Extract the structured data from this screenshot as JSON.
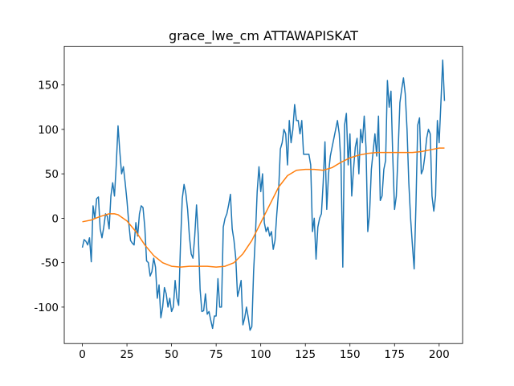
{
  "chart_data": {
    "type": "line",
    "title": "grace_lwe_cm ATTAWAPISKAT",
    "xlim": [
      -10.15,
      213.15
    ],
    "ylim": [
      -141,
      193.5
    ],
    "xticks": [
      0,
      25,
      50,
      75,
      100,
      125,
      150,
      175,
      200
    ],
    "yticks": [
      -100,
      -50,
      0,
      50,
      100,
      150
    ],
    "series": [
      {
        "color": "#1f77b4",
        "x": [
          0,
          1,
          2,
          3,
          4,
          5,
          6,
          7,
          8,
          9,
          10,
          11,
          12,
          13,
          14,
          15,
          16,
          17,
          18,
          19,
          20,
          21,
          22,
          23,
          24,
          25,
          26,
          27,
          28,
          29,
          30,
          31,
          32,
          33,
          34,
          35,
          36,
          37,
          38,
          39,
          40,
          41,
          42,
          43,
          44,
          45,
          46,
          47,
          48,
          49,
          50,
          51,
          52,
          53,
          54,
          55,
          56,
          57,
          58,
          59,
          60,
          61,
          62,
          63,
          64,
          65,
          66,
          67,
          68,
          69,
          70,
          71,
          72,
          73,
          74,
          75,
          76,
          77,
          78,
          79,
          80,
          81,
          82,
          83,
          84,
          85,
          86,
          87,
          88,
          89,
          90,
          91,
          92,
          93,
          94,
          95,
          96,
          97,
          98,
          99,
          100,
          101,
          102,
          103,
          104,
          105,
          106,
          107,
          108,
          109,
          110,
          111,
          112,
          113,
          114,
          115,
          116,
          117,
          118,
          119,
          120,
          121,
          122,
          123,
          124,
          125,
          126,
          127,
          128,
          129,
          130,
          131,
          132,
          133,
          134,
          135,
          136,
          137,
          138,
          139,
          140,
          141,
          142,
          143,
          144,
          145,
          146,
          147,
          148,
          149,
          150,
          151,
          152,
          153,
          154,
          155,
          156,
          157,
          158,
          159,
          160,
          161,
          162,
          163,
          164,
          165,
          166,
          167,
          168,
          169,
          170,
          171,
          172,
          173,
          174,
          175,
          176,
          177,
          178,
          179,
          180,
          181,
          182,
          183,
          184,
          185,
          186,
          187,
          188,
          189,
          190,
          191,
          192,
          193,
          194,
          195,
          196,
          197,
          198,
          199,
          200,
          201,
          202,
          203
        ],
        "values": [
          -33,
          -24,
          -26,
          -30,
          -22,
          -49,
          14,
          0,
          22,
          24,
          -12,
          -22,
          -10,
          5,
          2,
          -12,
          25,
          40,
          25,
          60,
          104,
          75,
          50,
          58,
          40,
          20,
          -5,
          -25,
          -28,
          -30,
          -5,
          -20,
          5,
          14,
          12,
          -10,
          -48,
          -50,
          -65,
          -60,
          -45,
          -55,
          -90,
          -75,
          -112,
          -100,
          -78,
          -85,
          -100,
          -90,
          -105,
          -100,
          -70,
          -90,
          -98,
          -30,
          22,
          38,
          28,
          10,
          -20,
          -40,
          -45,
          -20,
          15,
          -20,
          -80,
          -105,
          -104,
          -85,
          -108,
          -105,
          -115,
          -124,
          -110,
          -110,
          -68,
          -100,
          -100,
          -10,
          0,
          5,
          15,
          27,
          -12,
          -25,
          -45,
          -88,
          -80,
          -70,
          -120,
          -112,
          -100,
          -112,
          -126,
          -122,
          -60,
          -20,
          30,
          58,
          30,
          50,
          -5,
          -15,
          -10,
          -20,
          -15,
          -35,
          -25,
          5,
          30,
          78,
          85,
          100,
          95,
          60,
          110,
          85,
          100,
          128,
          110,
          110,
          95,
          110,
          72,
          72,
          72,
          72,
          60,
          -15,
          0,
          -46,
          -10,
          0,
          5,
          40,
          86,
          10,
          50,
          70,
          80,
          90,
          100,
          110,
          95,
          60,
          -55,
          105,
          118,
          60,
          95,
          25,
          55,
          80,
          90,
          50,
          100,
          85,
          115,
          80,
          -15,
          5,
          55,
          75,
          95,
          70,
          115,
          20,
          25,
          55,
          65,
          155,
          125,
          143,
          70,
          10,
          25,
          75,
          130,
          145,
          158,
          140,
          100,
          40,
          0,
          -30,
          -57,
          15,
          105,
          113,
          50,
          55,
          70,
          90,
          100,
          95,
          25,
          8,
          25,
          110,
          85,
          130,
          178,
          132
        ]
      },
      {
        "color": "#ff7f0e",
        "x": [
          0,
          5,
          10,
          15,
          18,
          20,
          25,
          30,
          35,
          40,
          45,
          50,
          55,
          60,
          65,
          70,
          75,
          80,
          85,
          90,
          95,
          100,
          105,
          110,
          115,
          120,
          125,
          130,
          135,
          140,
          145,
          150,
          155,
          160,
          165,
          170,
          175,
          180,
          185,
          190,
          195,
          200,
          203
        ],
        "values": [
          -4,
          -2,
          2,
          5,
          5,
          4,
          -3,
          -15,
          -30,
          -42,
          -50,
          -54,
          -55,
          -54,
          -54,
          -54,
          -55,
          -54,
          -50,
          -40,
          -25,
          -5,
          15,
          35,
          48,
          54,
          55,
          55,
          54,
          57,
          63,
          68,
          71,
          73,
          74,
          74,
          74,
          74,
          74,
          75,
          77,
          79,
          79
        ]
      }
    ]
  }
}
